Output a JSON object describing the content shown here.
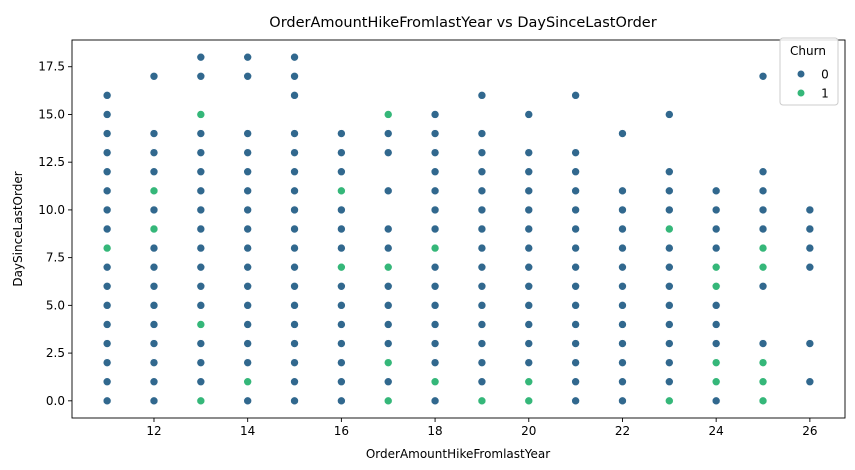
{
  "chart_data": {
    "type": "scatter",
    "title": "OrderAmountHikeFromlastYear vs DaySinceLastOrder",
    "xlabel": "OrderAmountHikeFromlastYear",
    "ylabel": "DaySinceLastOrder",
    "xlim": [
      10.25,
      26.75
    ],
    "ylim": [
      -0.9,
      18.9
    ],
    "xticks": [
      12,
      14,
      16,
      18,
      20,
      22,
      24,
      26
    ],
    "xtick_labels": [
      "12",
      "14",
      "16",
      "18",
      "20",
      "22",
      "24",
      "26"
    ],
    "yticks": [
      0,
      2.5,
      5,
      7.5,
      10,
      12.5,
      15,
      17.5
    ],
    "ytick_labels": [
      "0.0",
      "2.5",
      "5.0",
      "7.5",
      "10.0",
      "12.5",
      "15.0",
      "17.5"
    ],
    "grid": false,
    "legend": {
      "title": "Churn",
      "position": "top-right",
      "entries": [
        {
          "label": "0",
          "color": "#31688e"
        },
        {
          "label": "1",
          "color": "#35b779"
        }
      ]
    },
    "series": [
      {
        "name": "0",
        "color": "#31688e",
        "points": [
          [
            11,
            0
          ],
          [
            11,
            1
          ],
          [
            11,
            2
          ],
          [
            11,
            3
          ],
          [
            11,
            4
          ],
          [
            11,
            5
          ],
          [
            11,
            6
          ],
          [
            11,
            7
          ],
          [
            11,
            9
          ],
          [
            11,
            10
          ],
          [
            11,
            11
          ],
          [
            11,
            12
          ],
          [
            11,
            13
          ],
          [
            11,
            14
          ],
          [
            11,
            15
          ],
          [
            11,
            16
          ],
          [
            12,
            0
          ],
          [
            12,
            1
          ],
          [
            12,
            2
          ],
          [
            12,
            3
          ],
          [
            12,
            4
          ],
          [
            12,
            5
          ],
          [
            12,
            6
          ],
          [
            12,
            7
          ],
          [
            12,
            8
          ],
          [
            12,
            10
          ],
          [
            12,
            12
          ],
          [
            12,
            13
          ],
          [
            12,
            14
          ],
          [
            12,
            17
          ],
          [
            13,
            1
          ],
          [
            13,
            2
          ],
          [
            13,
            3
          ],
          [
            13,
            5
          ],
          [
            13,
            6
          ],
          [
            13,
            7
          ],
          [
            13,
            8
          ],
          [
            13,
            9
          ],
          [
            13,
            10
          ],
          [
            13,
            11
          ],
          [
            13,
            12
          ],
          [
            13,
            13
          ],
          [
            13,
            14
          ],
          [
            13,
            17
          ],
          [
            13,
            18
          ],
          [
            14,
            0
          ],
          [
            14,
            2
          ],
          [
            14,
            3
          ],
          [
            14,
            4
          ],
          [
            14,
            5
          ],
          [
            14,
            6
          ],
          [
            14,
            7
          ],
          [
            14,
            8
          ],
          [
            14,
            9
          ],
          [
            14,
            10
          ],
          [
            14,
            11
          ],
          [
            14,
            12
          ],
          [
            14,
            13
          ],
          [
            14,
            14
          ],
          [
            14,
            17
          ],
          [
            14,
            18
          ],
          [
            15,
            0
          ],
          [
            15,
            1
          ],
          [
            15,
            2
          ],
          [
            15,
            3
          ],
          [
            15,
            4
          ],
          [
            15,
            5
          ],
          [
            15,
            6
          ],
          [
            15,
            7
          ],
          [
            15,
            8
          ],
          [
            15,
            9
          ],
          [
            15,
            10
          ],
          [
            15,
            11
          ],
          [
            15,
            12
          ],
          [
            15,
            13
          ],
          [
            15,
            14
          ],
          [
            15,
            16
          ],
          [
            15,
            17
          ],
          [
            15,
            18
          ],
          [
            16,
            0
          ],
          [
            16,
            1
          ],
          [
            16,
            2
          ],
          [
            16,
            3
          ],
          [
            16,
            4
          ],
          [
            16,
            5
          ],
          [
            16,
            6
          ],
          [
            16,
            8
          ],
          [
            16,
            9
          ],
          [
            16,
            10
          ],
          [
            16,
            12
          ],
          [
            16,
            13
          ],
          [
            16,
            14
          ],
          [
            17,
            1
          ],
          [
            17,
            3
          ],
          [
            17,
            4
          ],
          [
            17,
            5
          ],
          [
            17,
            6
          ],
          [
            17,
            8
          ],
          [
            17,
            9
          ],
          [
            17,
            11
          ],
          [
            17,
            13
          ],
          [
            17,
            14
          ],
          [
            18,
            0
          ],
          [
            18,
            2
          ],
          [
            18,
            3
          ],
          [
            18,
            4
          ],
          [
            18,
            5
          ],
          [
            18,
            6
          ],
          [
            18,
            7
          ],
          [
            18,
            9
          ],
          [
            18,
            10
          ],
          [
            18,
            11
          ],
          [
            18,
            12
          ],
          [
            18,
            13
          ],
          [
            18,
            14
          ],
          [
            18,
            15
          ],
          [
            19,
            1
          ],
          [
            19,
            2
          ],
          [
            19,
            3
          ],
          [
            19,
            4
          ],
          [
            19,
            5
          ],
          [
            19,
            6
          ],
          [
            19,
            7
          ],
          [
            19,
            8
          ],
          [
            19,
            9
          ],
          [
            19,
            10
          ],
          [
            19,
            11
          ],
          [
            19,
            12
          ],
          [
            19,
            13
          ],
          [
            19,
            14
          ],
          [
            19,
            16
          ],
          [
            20,
            2
          ],
          [
            20,
            3
          ],
          [
            20,
            4
          ],
          [
            20,
            5
          ],
          [
            20,
            6
          ],
          [
            20,
            7
          ],
          [
            20,
            8
          ],
          [
            20,
            9
          ],
          [
            20,
            10
          ],
          [
            20,
            11
          ],
          [
            20,
            12
          ],
          [
            20,
            13
          ],
          [
            20,
            15
          ],
          [
            21,
            0
          ],
          [
            21,
            1
          ],
          [
            21,
            2
          ],
          [
            21,
            3
          ],
          [
            21,
            4
          ],
          [
            21,
            5
          ],
          [
            21,
            6
          ],
          [
            21,
            7
          ],
          [
            21,
            8
          ],
          [
            21,
            9
          ],
          [
            21,
            10
          ],
          [
            21,
            11
          ],
          [
            21,
            12
          ],
          [
            21,
            13
          ],
          [
            21,
            16
          ],
          [
            22,
            0
          ],
          [
            22,
            1
          ],
          [
            22,
            2
          ],
          [
            22,
            3
          ],
          [
            22,
            4
          ],
          [
            22,
            5
          ],
          [
            22,
            6
          ],
          [
            22,
            7
          ],
          [
            22,
            8
          ],
          [
            22,
            9
          ],
          [
            22,
            10
          ],
          [
            22,
            11
          ],
          [
            22,
            14
          ],
          [
            23,
            1
          ],
          [
            23,
            2
          ],
          [
            23,
            3
          ],
          [
            23,
            4
          ],
          [
            23,
            5
          ],
          [
            23,
            6
          ],
          [
            23,
            7
          ],
          [
            23,
            8
          ],
          [
            23,
            10
          ],
          [
            23,
            11
          ],
          [
            23,
            12
          ],
          [
            23,
            15
          ],
          [
            24,
            0
          ],
          [
            24,
            3
          ],
          [
            24,
            4
          ],
          [
            24,
            5
          ],
          [
            24,
            8
          ],
          [
            24,
            9
          ],
          [
            24,
            10
          ],
          [
            24,
            11
          ],
          [
            25,
            3
          ],
          [
            25,
            6
          ],
          [
            25,
            9
          ],
          [
            25,
            10
          ],
          [
            25,
            11
          ],
          [
            25,
            12
          ],
          [
            25,
            17
          ],
          [
            26,
            1
          ],
          [
            26,
            3
          ],
          [
            26,
            7
          ],
          [
            26,
            8
          ],
          [
            26,
            9
          ],
          [
            26,
            10
          ]
        ]
      },
      {
        "name": "1",
        "color": "#35b779",
        "points": [
          [
            11,
            8
          ],
          [
            12,
            9
          ],
          [
            12,
            11
          ],
          [
            13,
            0
          ],
          [
            13,
            4
          ],
          [
            13,
            15
          ],
          [
            14,
            1
          ],
          [
            16,
            7
          ],
          [
            16,
            11
          ],
          [
            17,
            0
          ],
          [
            17,
            2
          ],
          [
            17,
            7
          ],
          [
            17,
            15
          ],
          [
            18,
            1
          ],
          [
            18,
            8
          ],
          [
            19,
            0
          ],
          [
            20,
            0
          ],
          [
            20,
            1
          ],
          [
            23,
            0
          ],
          [
            23,
            9
          ],
          [
            24,
            1
          ],
          [
            24,
            2
          ],
          [
            24,
            6
          ],
          [
            24,
            7
          ],
          [
            25,
            0
          ],
          [
            25,
            1
          ],
          [
            25,
            2
          ],
          [
            25,
            7
          ],
          [
            25,
            8
          ]
        ]
      }
    ]
  }
}
